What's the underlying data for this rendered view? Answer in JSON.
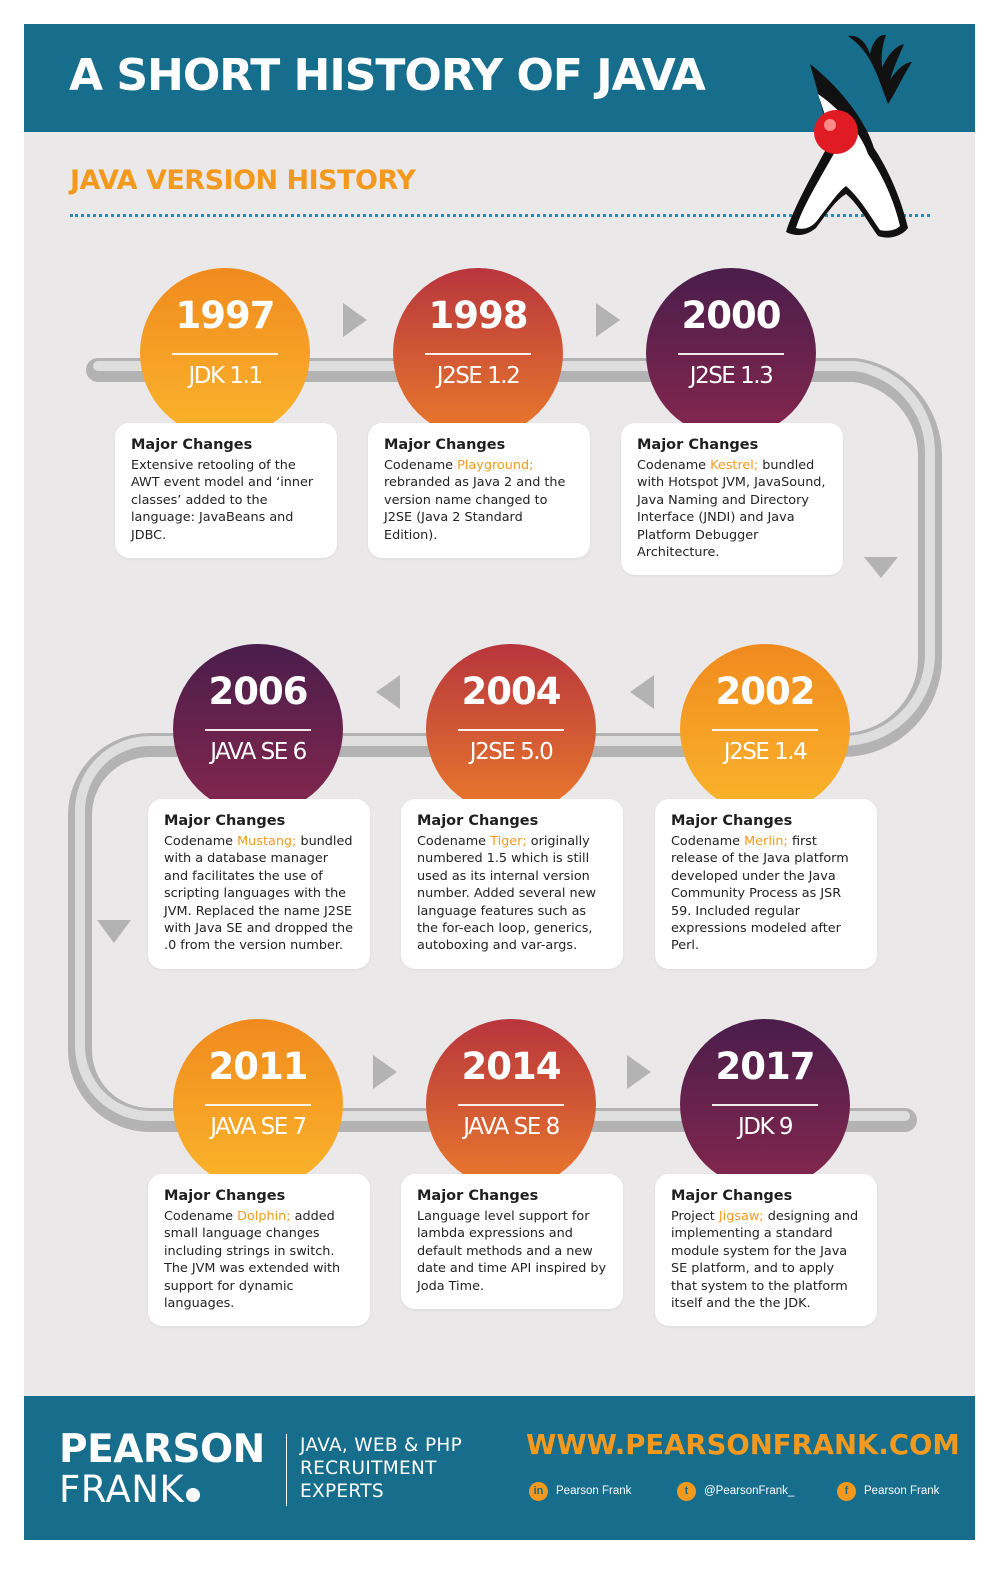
{
  "header": {
    "title": "A SHORT HISTORY OF JAVA"
  },
  "section": {
    "subtitle": "JAVA VERSION HISTORY"
  },
  "colors": {
    "header_bg": "#176d8c",
    "accent": "#f39a1e",
    "panel_bg": "#eae8e9",
    "orange": "#f39a1e",
    "red": "#c84535",
    "purple": "#5a1f4c"
  },
  "timeline": [
    {
      "year": "1997",
      "name": "JDK 1.1",
      "heading": "Major Changes",
      "codename": "",
      "text": "Extensive retooling of the AWT event model and ‘inner classes’ added to the language: JavaBeans and JDBC."
    },
    {
      "year": "1998",
      "name": "J2SE 1.2",
      "heading": "Major Changes",
      "codename": "Playground;",
      "text": "rebranded as Java 2 and the version name changed to J2SE (Java 2 Standard Edition)."
    },
    {
      "year": "2000",
      "name": "J2SE 1.3",
      "heading": "Major Changes",
      "codename": "Kestrel;",
      "text": "bundled with Hotspot JVM, JavaSound, Java Naming and Directory Interface (JNDI) and Java Platform Debugger Architecture."
    },
    {
      "year": "2002",
      "name": "J2SE 1.4",
      "heading": "Major Changes",
      "codename": "Merlin;",
      "text": "first release of the Java platform developed under the Java Community Process as JSR 59. Included regular expressions modeled after Perl."
    },
    {
      "year": "2004",
      "name": "J2SE 5.0",
      "heading": "Major Changes",
      "codename": "Tiger;",
      "text": "originally numbered 1.5 which is still used as its internal version number. Added several new language features such as the for-each loop, generics, autoboxing and var-args."
    },
    {
      "year": "2006",
      "name": "JAVA SE 6",
      "heading": "Major Changes",
      "codename": "Mustang;",
      "text": "bundled with a database manager and facilitates the use of scripting languages with the JVM. Replaced the name J2SE with Java SE and dropped the .0 from the version number."
    },
    {
      "year": "2011",
      "name": "JAVA SE 7",
      "heading": "Major Changes",
      "codename": "Dolphin;",
      "text": "added small language changes including strings in switch. The JVM was extended with support for dynamic languages."
    },
    {
      "year": "2014",
      "name": "JAVA SE 8",
      "heading": "Major Changes",
      "codename": "",
      "text": "Language level support for lambda expressions and default methods and a new date and time API inspired by Joda Time."
    },
    {
      "year": "2017",
      "name": "JDK 9",
      "heading": "Major Changes",
      "codename": "Jigsaw;",
      "prefix": "Project",
      "text": "designing and implementing a standard module system for the Java SE platform, and to apply that system to the platform itself and the the JDK."
    }
  ],
  "codename_prefix": "Codename",
  "footer": {
    "brand_line1": "PEARSON",
    "brand_line2": "FRANK",
    "tagline": [
      "JAVA, WEB & PHP",
      "RECRUITMENT",
      "EXPERTS"
    ],
    "website": "WWW.PEARSONFRANK.COM",
    "social": [
      {
        "icon": "linkedin-icon",
        "glyph": "in",
        "label": "Pearson Frank"
      },
      {
        "icon": "twitter-icon",
        "glyph": "t",
        "label": "@PearsonFrank_"
      },
      {
        "icon": "facebook-icon",
        "glyph": "f",
        "label": "Pearson Frank"
      }
    ]
  }
}
